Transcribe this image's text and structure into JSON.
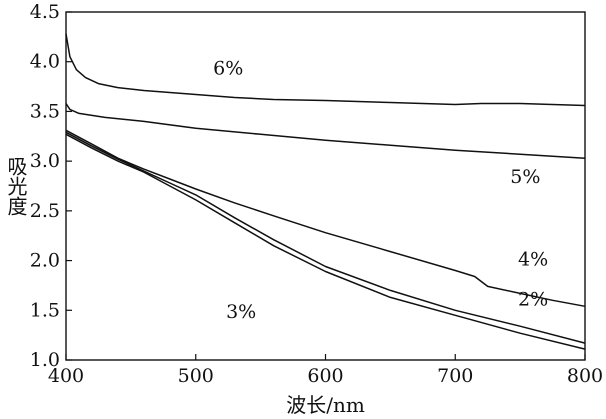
{
  "chart_data": {
    "type": "line",
    "title": "",
    "xlabel": "波长/nm",
    "ylabel": "吸光度",
    "xlim": [
      400,
      800
    ],
    "ylim": [
      1.0,
      4.5
    ],
    "x_ticks": [
      "400",
      "500",
      "600",
      "700",
      "800"
    ],
    "y_ticks": [
      "1.0",
      "1.5",
      "2.0",
      "2.5",
      "3.0",
      "3.5",
      "4.0",
      "4.5"
    ],
    "grid": false,
    "legend": "none",
    "series": [
      {
        "name": "6%",
        "label_at": [
          525,
          3.87
        ],
        "points": [
          [
            400,
            4.28
          ],
          [
            403,
            4.05
          ],
          [
            408,
            3.92
          ],
          [
            415,
            3.84
          ],
          [
            425,
            3.78
          ],
          [
            440,
            3.74
          ],
          [
            460,
            3.71
          ],
          [
            480,
            3.69
          ],
          [
            500,
            3.67
          ],
          [
            530,
            3.64
          ],
          [
            560,
            3.62
          ],
          [
            600,
            3.61
          ],
          [
            650,
            3.59
          ],
          [
            700,
            3.57
          ],
          [
            720,
            3.58
          ],
          [
            750,
            3.58
          ],
          [
            800,
            3.56
          ]
        ]
      },
      {
        "name": "5%",
        "label_at": [
          754,
          2.78
        ],
        "points": [
          [
            400,
            3.58
          ],
          [
            403,
            3.52
          ],
          [
            410,
            3.48
          ],
          [
            430,
            3.44
          ],
          [
            460,
            3.4
          ],
          [
            500,
            3.33
          ],
          [
            550,
            3.27
          ],
          [
            600,
            3.21
          ],
          [
            650,
            3.16
          ],
          [
            700,
            3.11
          ],
          [
            750,
            3.07
          ],
          [
            800,
            3.03
          ]
        ]
      },
      {
        "name": "4%",
        "label_at": [
          760,
          1.95
        ],
        "points": [
          [
            400,
            3.31
          ],
          [
            420,
            3.17
          ],
          [
            440,
            3.03
          ],
          [
            460,
            2.92
          ],
          [
            480,
            2.82
          ],
          [
            500,
            2.72
          ],
          [
            530,
            2.58
          ],
          [
            560,
            2.45
          ],
          [
            600,
            2.28
          ],
          [
            650,
            2.09
          ],
          [
            700,
            1.9
          ],
          [
            715,
            1.84
          ],
          [
            725,
            1.74
          ],
          [
            750,
            1.67
          ],
          [
            775,
            1.6
          ],
          [
            800,
            1.54
          ]
        ]
      },
      {
        "name": "2%",
        "label_at": [
          760,
          1.55
        ],
        "points": [
          [
            400,
            3.29
          ],
          [
            420,
            3.15
          ],
          [
            440,
            3.02
          ],
          [
            460,
            2.9
          ],
          [
            480,
            2.78
          ],
          [
            500,
            2.66
          ],
          [
            530,
            2.43
          ],
          [
            560,
            2.21
          ],
          [
            600,
            1.94
          ],
          [
            650,
            1.7
          ],
          [
            700,
            1.5
          ],
          [
            750,
            1.34
          ],
          [
            800,
            1.17
          ]
        ]
      },
      {
        "name": "3%",
        "label_at": [
          535,
          1.42
        ],
        "points": [
          [
            400,
            3.27
          ],
          [
            420,
            3.13
          ],
          [
            440,
            3.0
          ],
          [
            460,
            2.89
          ],
          [
            480,
            2.75
          ],
          [
            500,
            2.61
          ],
          [
            530,
            2.38
          ],
          [
            560,
            2.15
          ],
          [
            600,
            1.89
          ],
          [
            650,
            1.63
          ],
          [
            700,
            1.45
          ],
          [
            750,
            1.27
          ],
          [
            800,
            1.11
          ]
        ]
      }
    ]
  }
}
